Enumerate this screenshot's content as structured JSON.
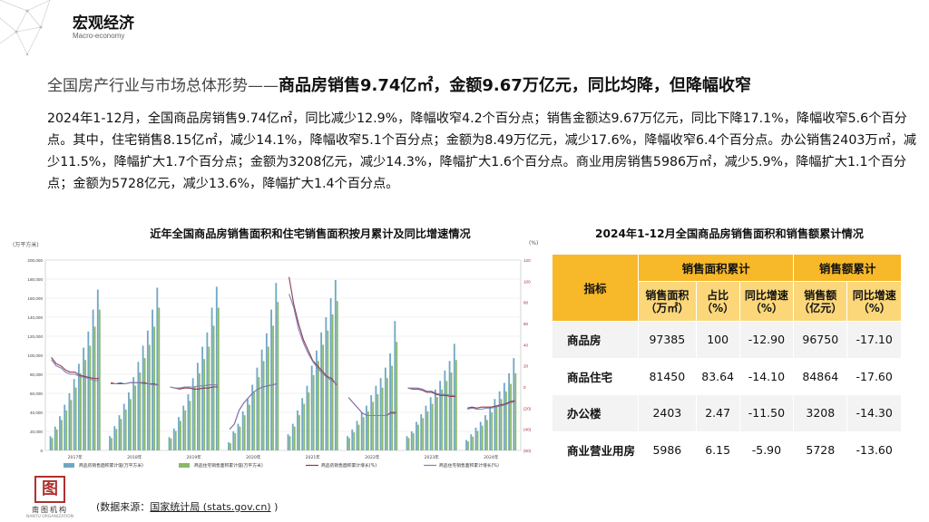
{
  "header": {
    "title": "宏观经济",
    "subtitle": "Macro-economy"
  },
  "headline": {
    "lead": "全国房产行业与市场总体形势——",
    "emph": "商品房销售9.74亿㎡，金额9.67万亿元，同比均降，但降幅收窄"
  },
  "paragraph": "2024年1-12月，全国商品房销售9.74亿㎡，同比减少12.9%，降幅收窄4.2个百分点；销售金额达9.67万亿元，同比下降17.1%，降幅收窄5.6个百分点。其中，住宅销售8.15亿㎡，减少14.1%，降幅收窄5.1个百分点；金额为8.49万亿元，减少17.6%，降幅收窄6.4个百分点。办公销售2403万㎡，减少11.5%，降幅扩大1.7个百分点；金额为3208亿元，减少14.3%，降幅扩大1.6个百分点。商业用房销售5986万㎡，减少5.9%，降幅扩大1.1个百分点；金额为5728亿元，减少13.6%，降幅扩大1.4个百分点。",
  "left_title": "近年全国商品房销售面积和住宅销售面积按月累计及同比增速情况",
  "right_title": "2024年1-12月全国商品房销售面积和销售额累计情况",
  "source": {
    "label": "(数据来源：",
    "link": "国家统计局 (stats.gov.cn)",
    "close": " )"
  },
  "logo": {
    "mark": "图",
    "name": "南图机构",
    "en": "NANTU ORGANIZATION"
  },
  "colors": {
    "bar_total": "#6fa8c4",
    "bar_res": "#8ab86a",
    "line_total": "#8e3a4a",
    "line_res": "#8080b8",
    "table_header": "#f7b829",
    "table_sub": "#fbd77a"
  },
  "chart_data": [
    {
      "type": "bar",
      "title": "近年全国商品房销售面积和住宅销售面积按月累计及同比增速情况",
      "ylabel_left": "(万平方米)",
      "ylabel_right": "(%)",
      "ylim_left": [
        0,
        200000
      ],
      "yticks_left": [
        "0",
        "20,000",
        "40,000",
        "60,000",
        "80,000",
        "100,000",
        "120,000",
        "140,000",
        "160,000",
        "180,000",
        "200,000"
      ],
      "ylim_right": [
        -60,
        120
      ],
      "yticks_right": [
        "(60)",
        "(40)",
        "(20)",
        "0",
        "20",
        "40",
        "60",
        "80",
        "100",
        "120"
      ],
      "groups": [
        "2017年",
        "2018年",
        "2019年",
        "2020年",
        "2021年",
        "2022年",
        "2023年",
        "2024年"
      ],
      "months_per_group": 11,
      "series": [
        {
          "name": "商品房销售面积累计值(万平方米)",
          "kind": "bar",
          "values": [
            [
              15000,
              25000,
              36000,
              48000,
              60000,
              75000,
              91000,
              108000,
              125000,
              148000,
              169000
            ],
            [
              15000,
              25500,
              37000,
              49000,
              61000,
              77000,
              93000,
              110000,
              126000,
              148000,
              171000
            ],
            [
              14000,
              23000,
              35000,
              47000,
              59000,
              76000,
              92000,
              109000,
              124000,
              150000,
              172000
            ],
            [
              8500,
              20000,
              28000,
              41000,
              54000,
              69000,
              87000,
              106000,
              123000,
              148000,
              176000
            ],
            [
              17000,
              28000,
              42000,
              55000,
              68000,
              89000,
              105000,
              124000,
              140000,
              160000,
              179000
            ],
            [
              15000,
              22000,
              31000,
              40000,
              47000,
              58000,
              68000,
              76000,
              87000,
              102000,
              136000
            ],
            [
              15000,
              20000,
              30000,
              38000,
              47000,
              56000,
              64000,
              73000,
              84000,
              94000,
              112000
            ],
            [
              11000,
              17000,
              24000,
              30000,
              37000,
              46000,
              54000,
              62000,
              71000,
              81000,
              97000
            ]
          ]
        },
        {
          "name": "商品住宅销售面积累计值(万平方米)",
          "kind": "bar",
          "values": [
            [
              13000,
              22000,
              32000,
              42000,
              53000,
              66000,
              81000,
              95000,
              110000,
              130000,
              148000
            ],
            [
              13000,
              22500,
              33000,
              43000,
              54000,
              68000,
              82000,
              97000,
              111000,
              130000,
              150000
            ],
            [
              12500,
              20500,
              31000,
              42000,
              52000,
              67000,
              81000,
              96000,
              109000,
              131000,
              150000
            ],
            [
              7500,
              18000,
              25000,
              37000,
              48000,
              61000,
              77000,
              94000,
              109000,
              131000,
              156000
            ],
            [
              15000,
              25000,
              37000,
              49000,
              61000,
              79000,
              94000,
              111000,
              126000,
              143000,
              157000
            ],
            [
              13000,
              19000,
              27000,
              35000,
              41000,
              51000,
              59000,
              66000,
              76000,
              89000,
              114000
            ],
            [
              13000,
              18000,
              27000,
              34000,
              41000,
              49000,
              56000,
              64000,
              73000,
              82000,
              95000
            ],
            [
              9500,
              14500,
              20500,
              26000,
              32000,
              40000,
              47000,
              54000,
              62000,
              70000,
              81000
            ]
          ]
        },
        {
          "name": "商品房销售面积累计增长(%)",
          "kind": "line",
          "values": [
            [
              28,
              22,
              20,
              16,
              14,
              14,
              11,
              10,
              9,
              8,
              8
            ],
            [
              4,
              3,
              3,
              3,
              4,
              4,
              4,
              4,
              3,
              3,
              2
            ],
            [
              0,
              -1,
              -2,
              -1,
              -1,
              -2,
              -2,
              -1,
              -1,
              0,
              0
            ],
            [
              -40,
              -35,
              -22,
              -15,
              -10,
              -5,
              -2,
              0,
              1,
              2,
              3
            ],
            [
              104,
              78,
              60,
              45,
              35,
              25,
              20,
              15,
              10,
              8,
              2
            ],
            [
              -10,
              -15,
              -20,
              -25,
              -27,
              -27,
              -27,
              -27,
              -27,
              -24,
              -24
            ],
            [
              -1,
              -2,
              -2,
              -3,
              -5,
              -5,
              -7,
              -8,
              -8,
              -9,
              -9
            ],
            [
              -20,
              -19,
              -20,
              -19,
              -19,
              -19,
              -18,
              -17,
              -16,
              -14,
              -13
            ]
          ]
        },
        {
          "name": "商品住宅销售面积累计增长(%)",
          "kind": "line",
          "values": [
            [
              26,
              20,
              18,
              14,
              12,
              12,
              10,
              9,
              8,
              6,
              6
            ],
            [
              3,
              3,
              4,
              3,
              4,
              4,
              4,
              3,
              3,
              2,
              2
            ],
            [
              0,
              -1,
              -1,
              0,
              0,
              0,
              1,
              1,
              2,
              2,
              2
            ],
            [
              -40,
              -35,
              -22,
              -15,
              -10,
              -5,
              -2,
              0,
              1,
              2,
              3
            ],
            [
              88,
              75,
              55,
              42,
              32,
              24,
              18,
              13,
              9,
              6,
              3
            ],
            [
              -10,
              -15,
              -20,
              -25,
              -27,
              -27,
              -27,
              -27,
              -27,
              -25,
              -25
            ],
            [
              -1,
              -1,
              -1,
              -2,
              -4,
              -4,
              -6,
              -7,
              -7,
              -8,
              -8
            ],
            [
              -21,
              -20,
              -21,
              -21,
              -20,
              -20,
              -19,
              -18,
              -17,
              -15,
              -14
            ]
          ]
        }
      ],
      "legend": [
        "商品房销售面积累计值(万平方米)",
        "商品住宅销售面积累计值(万平方米)",
        "商品房销售面积累计增长(%)",
        "商品住宅销售面积累计增长(%)"
      ],
      "legend_position": "bottom"
    },
    {
      "type": "table",
      "title": "2024年1-12月全国商品房销售面积和销售额累计情况",
      "header_top": [
        "指标",
        "销售面积累计",
        "销售额累计"
      ],
      "columns": [
        "销售面积（万㎡）",
        "占比（%）",
        "同比增速（%）",
        "销售额（亿元）",
        "同比增速（%）"
      ],
      "rows": [
        [
          "商品房",
          "97385",
          "100",
          "-12.90",
          "96750",
          "-17.10"
        ],
        [
          "商品住宅",
          "81450",
          "83.64",
          "-14.10",
          "84864",
          "-17.60"
        ],
        [
          "办公楼",
          "2403",
          "2.47",
          "-11.50",
          "3208",
          "-14.30"
        ],
        [
          "商业营业用房",
          "5986",
          "6.15",
          "-5.90",
          "5728",
          "-13.60"
        ]
      ]
    }
  ]
}
